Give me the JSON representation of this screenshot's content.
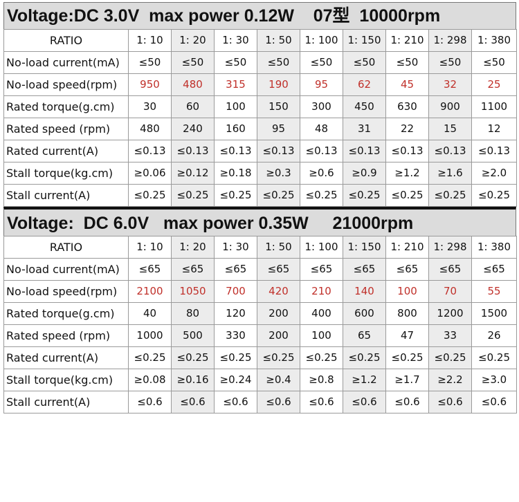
{
  "sections": [
    {
      "title": "Voltage:DC 3.0V  max power 0.12W    07型  10000rpm",
      "rows": [
        {
          "label": "RATIO",
          "values": [
            "1: 10",
            "1: 20",
            "1: 30",
            "1: 50",
            "1: 100",
            "1: 150",
            "1: 210",
            "1: 298",
            "1: 380"
          ],
          "red": false
        },
        {
          "label": "No-load current(mA)",
          "values": [
            "≤50",
            "≤50",
            "≤50",
            "≤50",
            "≤50",
            "≤50",
            "≤50",
            "≤50",
            "≤50"
          ],
          "red": false
        },
        {
          "label": "No-load speed(rpm)",
          "values": [
            "950",
            "480",
            "315",
            "190",
            "95",
            "62",
            "45",
            "32",
            "25"
          ],
          "red": true
        },
        {
          "label": "Rated torque(g.cm)",
          "values": [
            "30",
            "60",
            "100",
            "150",
            "300",
            "450",
            "630",
            "900",
            "1100"
          ],
          "red": false
        },
        {
          "label": "Rated speed (rpm)",
          "values": [
            "480",
            "240",
            "160",
            "95",
            "48",
            "31",
            "22",
            "15",
            "12"
          ],
          "red": false
        },
        {
          "label": "Rated current(A)",
          "values": [
            "≤0.13",
            "≤0.13",
            "≤0.13",
            "≤0.13",
            "≤0.13",
            "≤0.13",
            "≤0.13",
            "≤0.13",
            "≤0.13"
          ],
          "red": false
        },
        {
          "label": "Stall torque(kg.cm)",
          "values": [
            "≥0.06",
            "≥0.12",
            "≥0.18",
            "≥0.3",
            "≥0.6",
            "≥0.9",
            "≥1.2",
            "≥1.6",
            "≥2.0"
          ],
          "red": false
        },
        {
          "label": "Stall current(A)",
          "values": [
            "≤0.25",
            "≤0.25",
            "≤0.25",
            "≤0.25",
            "≤0.25",
            "≤0.25",
            "≤0.25",
            "≤0.25",
            "≤0.25"
          ],
          "red": false
        }
      ]
    },
    {
      "title": "Voltage:  DC 6.0V   max power 0.35W     21000rpm",
      "rows": [
        {
          "label": "RATIO",
          "values": [
            "1: 10",
            "1: 20",
            "1: 30",
            "1: 50",
            "1: 100",
            "1: 150",
            "1: 210",
            "1: 298",
            "1: 380"
          ],
          "red": false
        },
        {
          "label": "No-load current(mA)",
          "values": [
            "≤65",
            "≤65",
            "≤65",
            "≤65",
            "≤65",
            "≤65",
            "≤65",
            "≤65",
            "≤65"
          ],
          "red": false
        },
        {
          "label": "No-load speed(rpm)",
          "values": [
            "2100",
            "1050",
            "700",
            "420",
            "210",
            "140",
            "100",
            "70",
            "55"
          ],
          "red": true
        },
        {
          "label": "Rated torque(g.cm)",
          "values": [
            "40",
            "80",
            "120",
            "200",
            "400",
            "600",
            "800",
            "1200",
            "1500"
          ],
          "red": false
        },
        {
          "label": "Rated speed (rpm)",
          "values": [
            "1000",
            "500",
            "330",
            "200",
            "100",
            "65",
            "47",
            "33",
            "26"
          ],
          "red": false
        },
        {
          "label": "Rated current(A)",
          "values": [
            "≤0.25",
            "≤0.25",
            "≤0.25",
            "≤0.25",
            "≤0.25",
            "≤0.25",
            "≤0.25",
            "≤0.25",
            "≤0.25"
          ],
          "red": false
        },
        {
          "label": "Stall torque(kg.cm)",
          "values": [
            "≥0.08",
            "≥0.16",
            "≥0.24",
            "≥0.4",
            "≥0.8",
            "≥1.2",
            "≥1.7",
            "≥2.2",
            "≥3.0"
          ],
          "red": false
        },
        {
          "label": "Stall current(A)",
          "values": [
            "≤0.6",
            "≤0.6",
            "≤0.6",
            "≤0.6",
            "≤0.6",
            "≤0.6",
            "≤0.6",
            "≤0.6",
            "≤0.6"
          ],
          "red": false
        }
      ]
    }
  ],
  "colors": {
    "header_bg": "#dcdcdc",
    "shade": "#ececec",
    "red_value": "#c0302a"
  }
}
